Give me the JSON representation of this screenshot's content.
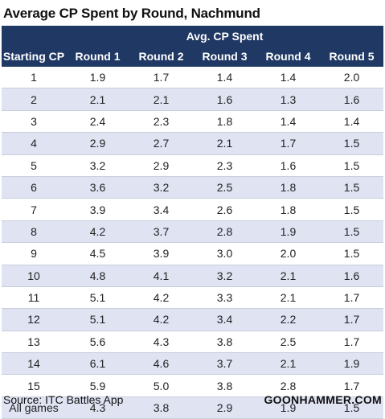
{
  "page": {
    "title": "Average CP Spent by Round, Nachmund"
  },
  "table": {
    "group_header": "Avg. CP Spent",
    "columns": [
      "Starting CP",
      "Round 1",
      "Round 2",
      "Round 3",
      "Round 4",
      "Round 5"
    ],
    "header_color": "#1f3864",
    "stripe_color": "#dfe3f2"
  },
  "footer": {
    "source": "Source: ITC Battles App",
    "brand": "GOONHAMMER.COM"
  },
  "chart_data": {
    "type": "table",
    "title": "Average CP Spent by Round, Nachmund",
    "column_group": "Avg. CP Spent",
    "columns": [
      "Starting CP",
      "Round 1",
      "Round 2",
      "Round 3",
      "Round 4",
      "Round 5"
    ],
    "rows": [
      [
        "1",
        "1.9",
        "1.7",
        "1.4",
        "1.4",
        "2.0"
      ],
      [
        "2",
        "2.1",
        "2.1",
        "1.6",
        "1.3",
        "1.6"
      ],
      [
        "3",
        "2.4",
        "2.3",
        "1.8",
        "1.4",
        "1.4"
      ],
      [
        "4",
        "2.9",
        "2.7",
        "2.1",
        "1.7",
        "1.5"
      ],
      [
        "5",
        "3.2",
        "2.9",
        "2.3",
        "1.6",
        "1.5"
      ],
      [
        "6",
        "3.6",
        "3.2",
        "2.5",
        "1.8",
        "1.5"
      ],
      [
        "7",
        "3.9",
        "3.4",
        "2.6",
        "1.8",
        "1.5"
      ],
      [
        "8",
        "4.2",
        "3.7",
        "2.8",
        "1.9",
        "1.5"
      ],
      [
        "9",
        "4.5",
        "3.9",
        "3.0",
        "2.0",
        "1.5"
      ],
      [
        "10",
        "4.8",
        "4.1",
        "3.2",
        "2.1",
        "1.6"
      ],
      [
        "11",
        "5.1",
        "4.2",
        "3.3",
        "2.1",
        "1.7"
      ],
      [
        "12",
        "5.1",
        "4.2",
        "3.4",
        "2.2",
        "1.7"
      ],
      [
        "13",
        "5.6",
        "4.3",
        "3.8",
        "2.5",
        "1.7"
      ],
      [
        "14",
        "6.1",
        "4.6",
        "3.7",
        "2.1",
        "1.9"
      ],
      [
        "15",
        "5.9",
        "5.0",
        "3.8",
        "2.8",
        "1.7"
      ]
    ],
    "total_row": [
      "All games",
      "4.3",
      "3.8",
      "2.9",
      "1.9",
      "1.5"
    ],
    "source": "Source: ITC Battles App"
  }
}
